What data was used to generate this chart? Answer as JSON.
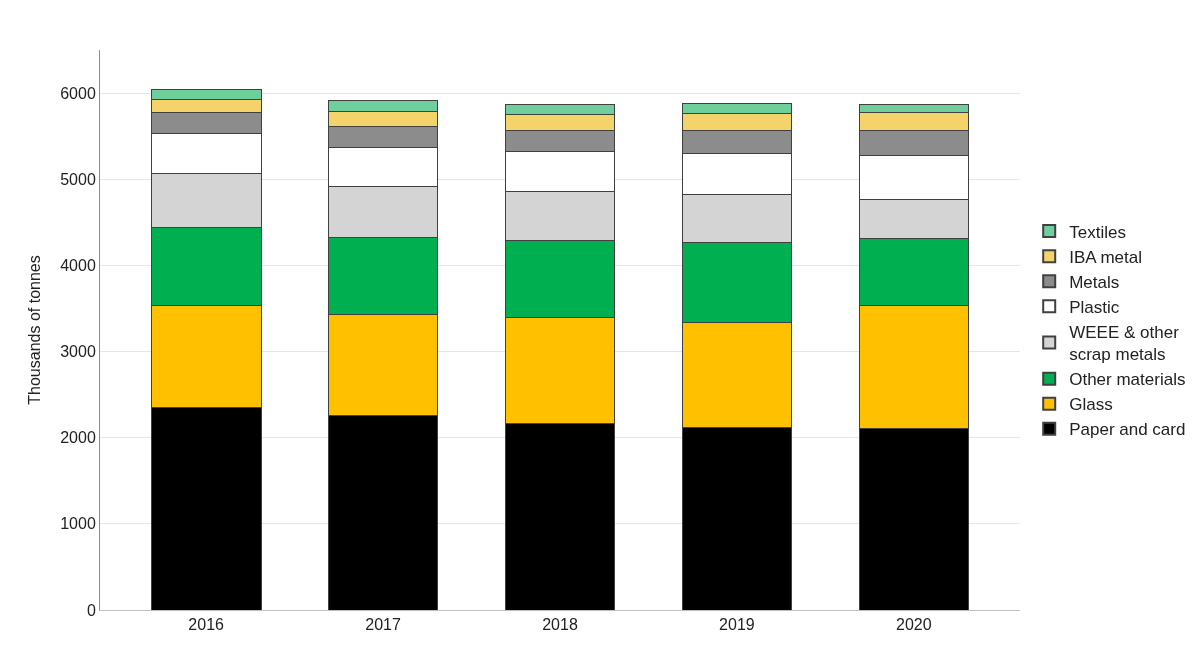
{
  "chart_data": {
    "type": "bar",
    "stacked": true,
    "ylabel": "Thousands of tonnes",
    "categories": [
      "2016",
      "2017",
      "2018",
      "2019",
      "2020"
    ],
    "series": [
      {
        "name": "Paper and card",
        "color": "#000000",
        "values": [
          2350,
          2260,
          2170,
          2120,
          2110
        ]
      },
      {
        "name": "Glass",
        "color": "#ffc000",
        "values": [
          1180,
          1170,
          1220,
          1220,
          1430
        ]
      },
      {
        "name": "Other materials",
        "color": "#00b050",
        "values": [
          910,
          890,
          900,
          920,
          770
        ]
      },
      {
        "name": "WEEE & other\nscrap metals",
        "color": "#d4d4d4",
        "values": [
          630,
          600,
          570,
          560,
          460
        ]
      },
      {
        "name": "Plastic",
        "color": "#ffffff",
        "values": [
          460,
          450,
          460,
          480,
          510
        ]
      },
      {
        "name": "Metals",
        "color": "#8c8c8c",
        "values": [
          250,
          240,
          250,
          260,
          280
        ]
      },
      {
        "name": "IBA metal",
        "color": "#f5d36b",
        "values": [
          140,
          180,
          180,
          200,
          210
        ]
      },
      {
        "name": "Textiles",
        "color": "#6fcf9c",
        "values": [
          120,
          120,
          120,
          120,
          100
        ]
      }
    ],
    "ylim": [
      0,
      6500
    ],
    "yticks": [
      0,
      1000,
      2000,
      3000,
      4000,
      5000,
      6000
    ],
    "grid": "y",
    "legend": "right"
  }
}
